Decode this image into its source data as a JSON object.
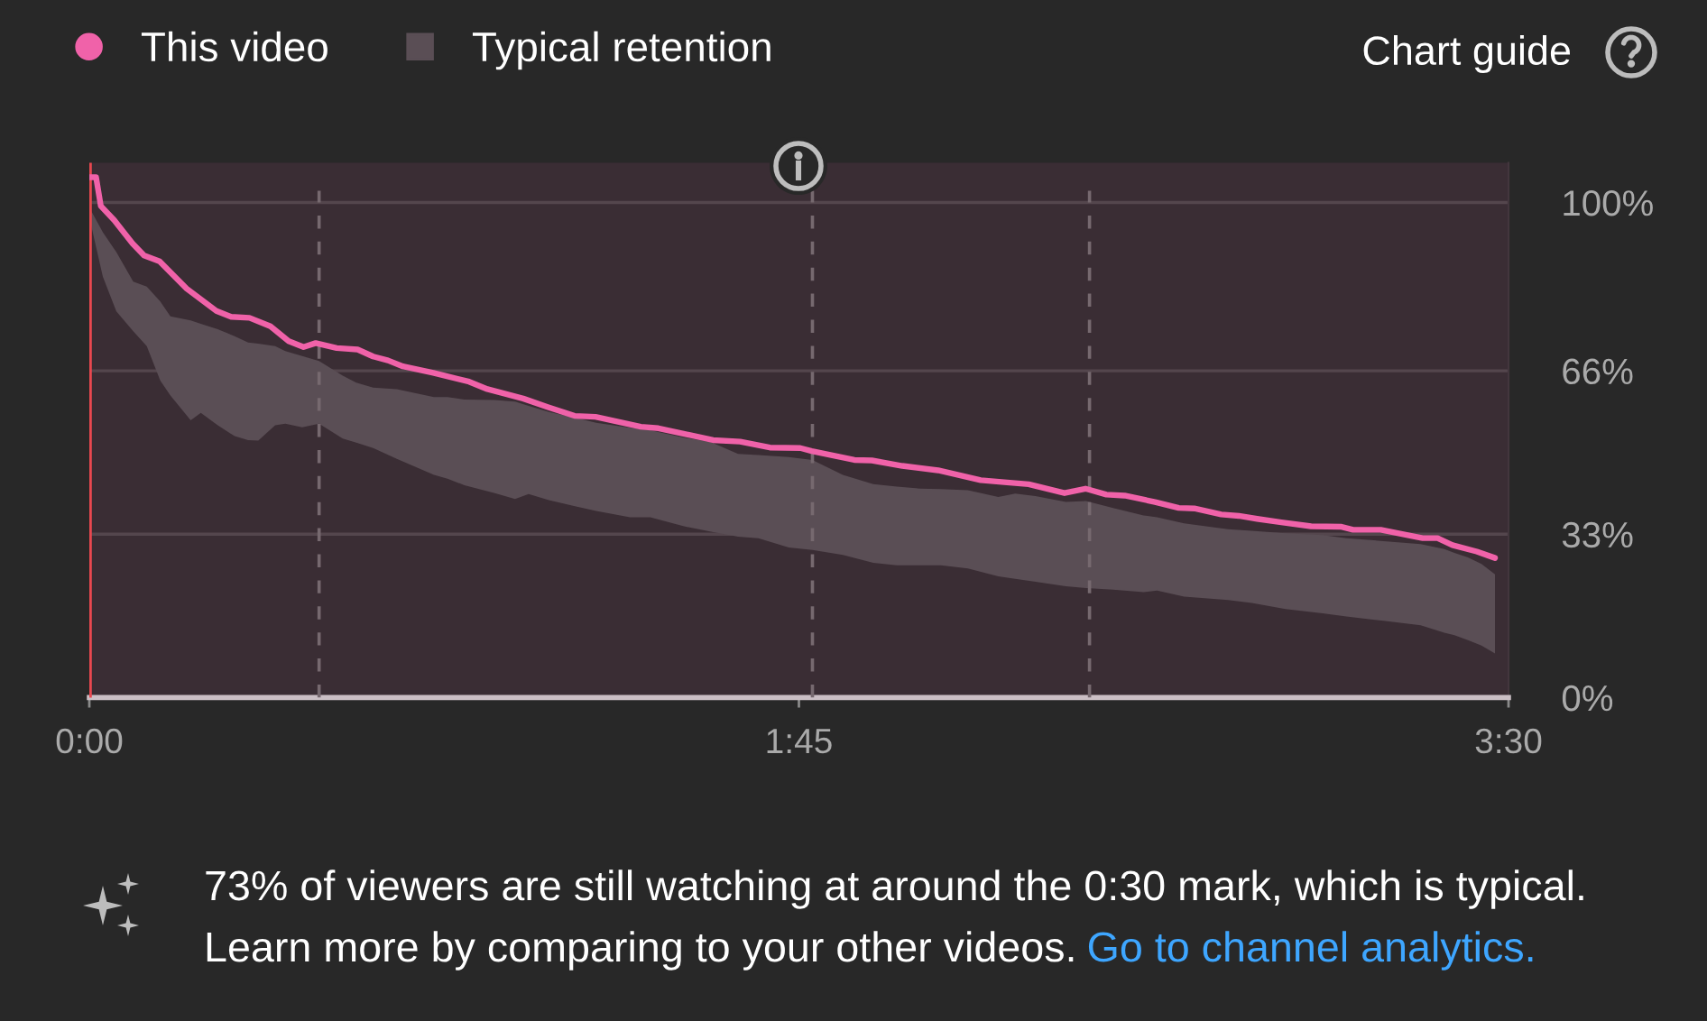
{
  "chart_data": {
    "type": "line",
    "series": [
      {
        "name": "This video",
        "color": "#f062a9",
        "x": [
          0,
          1,
          1.7,
          3.7,
          6.4,
          8.1,
          10.4,
          14.4,
          18.8,
          21,
          23.7,
          26.8,
          29.5,
          31.7,
          33.5,
          36.6,
          39.7,
          42,
          44.2,
          46.4,
          50.9,
          56.2,
          58.9,
          64.2,
          67.8,
          71.8,
          74.9,
          81.6,
          84.2,
          92.3,
          96.3,
          100.7,
          105.2,
          106.9,
          113.2,
          115.8,
          120.3,
          125.6,
          131.9,
          135.4,
          139,
          144.3,
          147.4,
          150.5,
          153.2,
          157.7,
          161.2,
          163.5,
          167.5,
          170.1,
          172.8,
          176.4,
          180.8,
          185.3,
          187,
          191.1,
          195.1,
          197.3,
          199.5,
          201.7,
          205.3,
          208
        ],
        "values": [
          105.1,
          105.1,
          99.3,
          96.4,
          91.7,
          89.3,
          88.1,
          82.6,
          78.1,
          76.9,
          76.7,
          75,
          72,
          70.8,
          71.6,
          70.6,
          70.3,
          68.9,
          68.1,
          66.9,
          65.6,
          63.8,
          62.3,
          60.4,
          58.7,
          56.9,
          56.7,
          54.7,
          54.4,
          52,
          51.7,
          50.5,
          50.4,
          49.8,
          48,
          47.9,
          46.8,
          45.9,
          43.9,
          43.5,
          43.1,
          41.3,
          42.2,
          41,
          40.8,
          39.5,
          38.3,
          38.2,
          37,
          36.7,
          36.1,
          35.4,
          34.6,
          34.5,
          33.9,
          33.9,
          32.8,
          32.2,
          32.2,
          30.8,
          29.5,
          28.2
        ]
      },
      {
        "name": "Typical retention",
        "type": "area",
        "color": "#5a4e55",
        "x": [
          0,
          2,
          4,
          6.5,
          8.5,
          10.5,
          12,
          15,
          16.5,
          19,
          21.5,
          23.5,
          25,
          27.5,
          29,
          31.5,
          34,
          37.5,
          39.5,
          42,
          45.5,
          51,
          53,
          55.5,
          60,
          63,
          65,
          68,
          72,
          75,
          80,
          83,
          88,
          92,
          96,
          99,
          103.5,
          107,
          111.5,
          116,
          119.5,
          123,
          126,
          130,
          134.5,
          137,
          140,
          144.5,
          147.5,
          151.5,
          156,
          158,
          162,
          168.5,
          172,
          177,
          182.5,
          186,
          191.5,
          197,
          200.5,
          202,
          204,
          206,
          208
        ],
        "values": [
          null,
          null,
          null,
          null,
          null,
          null,
          null,
          null,
          null,
          null,
          null,
          null,
          null,
          null,
          null,
          null,
          null,
          null,
          null,
          null,
          null,
          null,
          null,
          null,
          null,
          null,
          null,
          null,
          null,
          null,
          null,
          null,
          null,
          null,
          null,
          null,
          null,
          null,
          null,
          null,
          null,
          null,
          null,
          null,
          null,
          null,
          null,
          null,
          null,
          null,
          null,
          null,
          null,
          null,
          null,
          null,
          null,
          null,
          null,
          null,
          null,
          null,
          null,
          null,
          null
        ],
        "upper": [
          99,
          94,
          90,
          84,
          83,
          80,
          77,
          76.2,
          75.5,
          74.4,
          73,
          71.7,
          71.5,
          71,
          70,
          69,
          68,
          65,
          63.6,
          62.6,
          62.3,
          60.7,
          60.7,
          60.2,
          60.1,
          59.8,
          58.9,
          57.7,
          56.5,
          55.5,
          54.5,
          54,
          52.5,
          51.6,
          49.2,
          49,
          48.6,
          48,
          45,
          43.1,
          42.6,
          42.2,
          42.1,
          41.9,
          40.5,
          41.2,
          40.7,
          39.5,
          39.7,
          38.3,
          36.8,
          36.4,
          35.2,
          34,
          33.7,
          33.2,
          32.8,
          32.2,
          31.6,
          31,
          30,
          29.2,
          28.3,
          27,
          24.9
        ],
        "lower": [
          97,
          85,
          78,
          74,
          71,
          64,
          61,
          56,
          57.5,
          55,
          52.8,
          52,
          51.9,
          55,
          55.3,
          54.6,
          55.3,
          52.3,
          51.5,
          50.4,
          48.2,
          45,
          44.2,
          42.9,
          41.3,
          40.1,
          41.1,
          39.9,
          38.6,
          37.7,
          36.4,
          36.4,
          34.6,
          33.5,
          32.5,
          32.2,
          30.3,
          29.8,
          28.8,
          27.2,
          26.7,
          26.7,
          26.7,
          26.1,
          24.5,
          24,
          23.4,
          22.5,
          22.1,
          21.8,
          21.3,
          21.6,
          20.4,
          19.7,
          19.1,
          17.9,
          17,
          16.4,
          15.5,
          14.6,
          13.1,
          12.6,
          11.6,
          10.5,
          8.9
        ]
      }
    ],
    "xlim": [
      0,
      210
    ],
    "xticks": [
      {
        "value": 0,
        "label": "0:00"
      },
      {
        "value": 105,
        "label": "1:45"
      },
      {
        "value": 210,
        "label": "3:30"
      }
    ],
    "ylim": [
      0,
      108
    ],
    "yticks": [
      {
        "value": 0,
        "label": "0%"
      },
      {
        "value": 33,
        "label": "33%"
      },
      {
        "value": 66,
        "label": "66%"
      },
      {
        "value": 100,
        "label": "100%"
      }
    ],
    "grid": "y",
    "legend": "top left",
    "ref_lines": [
      {
        "axis": "x",
        "value": 0,
        "color": "#e8474f"
      },
      {
        "axis": "x",
        "value": 34,
        "line_style": "dashed",
        "color": "#76696f"
      },
      {
        "axis": "x",
        "value": 107,
        "line_style": "dashed",
        "color": "#76696f"
      },
      {
        "axis": "x",
        "value": 148,
        "line_style": "dashed",
        "color": "#76696f"
      }
    ],
    "annotations": [
      "Chart guide",
      "73% of viewers are still watching at around the 0:30 mark, which is typical.",
      "Learn more by comparing to your other videos.",
      "Go to channel analytics."
    ]
  }
}
